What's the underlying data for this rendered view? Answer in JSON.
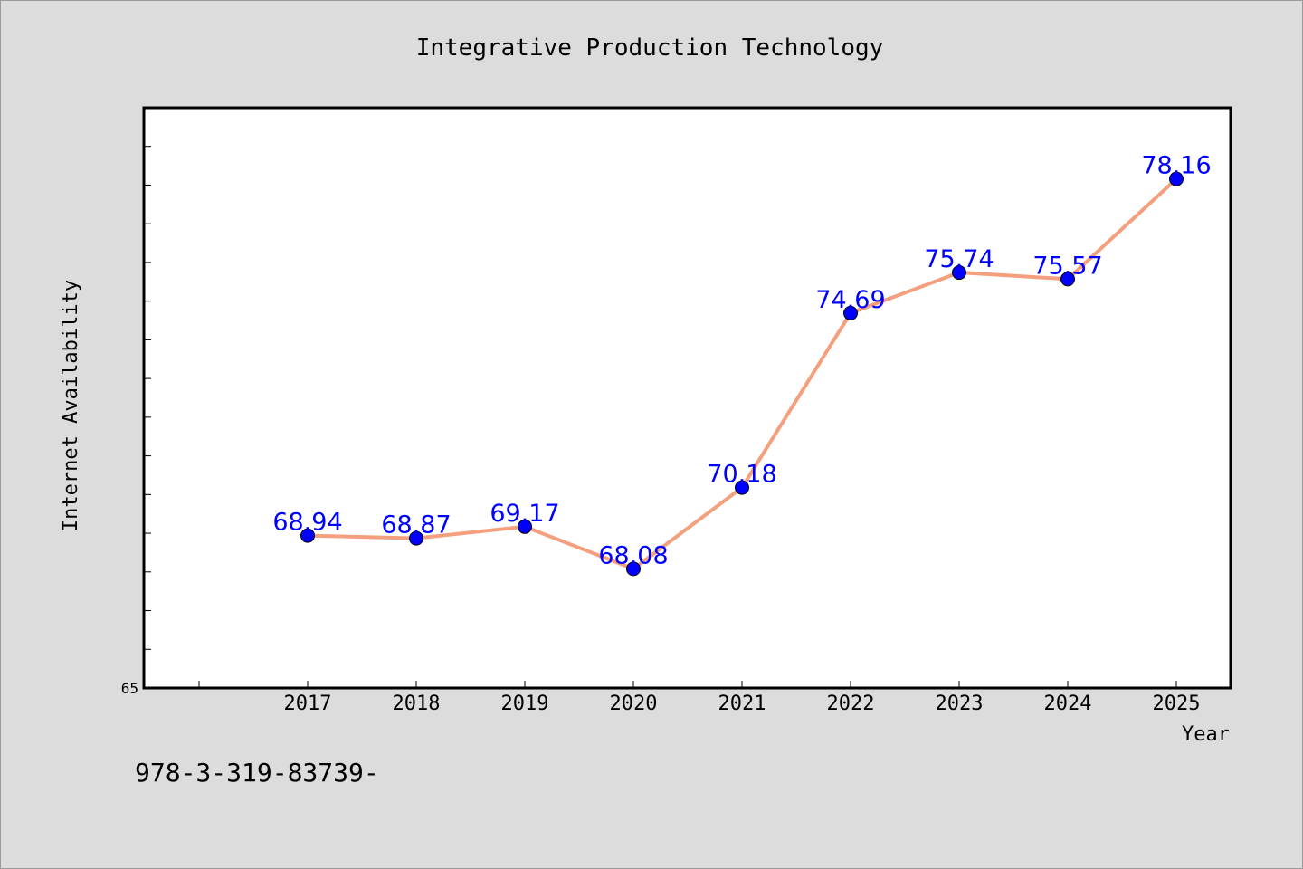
{
  "chart_data": {
    "type": "line",
    "title": "Integrative Production Technology",
    "xlabel": "Year",
    "ylabel": "Internet Availability",
    "categories": [
      "2017",
      "2018",
      "2019",
      "2020",
      "2021",
      "2022",
      "2023",
      "2024",
      "2025"
    ],
    "series": [
      {
        "values": [
          68.94,
          68.87,
          69.17,
          68.08,
          70.18,
          74.69,
          75.74,
          75.57,
          78.16
        ],
        "data_labels": [
          "68.94",
          "68.87",
          "69.17",
          "68.08",
          "70.18",
          "74.69",
          "75.74",
          "75.57",
          "78.16"
        ],
        "line_color": "#f4a07e",
        "marker_color": "#0000ff",
        "label_color": "#0000ff"
      }
    ],
    "ylim": [
      65,
      80
    ],
    "y_tick_labels": [
      "65"
    ],
    "grid": false,
    "legend": "none"
  },
  "footer_text": "978-3-319-83739-"
}
